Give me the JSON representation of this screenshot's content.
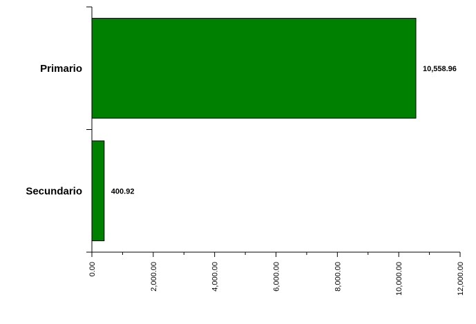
{
  "chart_data": {
    "type": "bar",
    "orientation": "horizontal",
    "categories": [
      "Primario",
      "Secundario"
    ],
    "values": [
      10558.96,
      400.92
    ],
    "data_labels": [
      "10,558.96",
      "400.92"
    ],
    "bar_color": "#008000",
    "bar_edge_color": "#000000",
    "xlim": [
      0,
      12000
    ],
    "x_ticks": [
      0,
      2000,
      4000,
      6000,
      8000,
      10000,
      12000
    ],
    "x_tick_labels": [
      "0.00",
      "2,000.00",
      "4,000.00",
      "6,000.00",
      "8,000.00",
      "10,000.00",
      "12,000.00"
    ],
    "grid": false,
    "legend": "none",
    "title": "",
    "xlabel": "",
    "ylabel": ""
  }
}
